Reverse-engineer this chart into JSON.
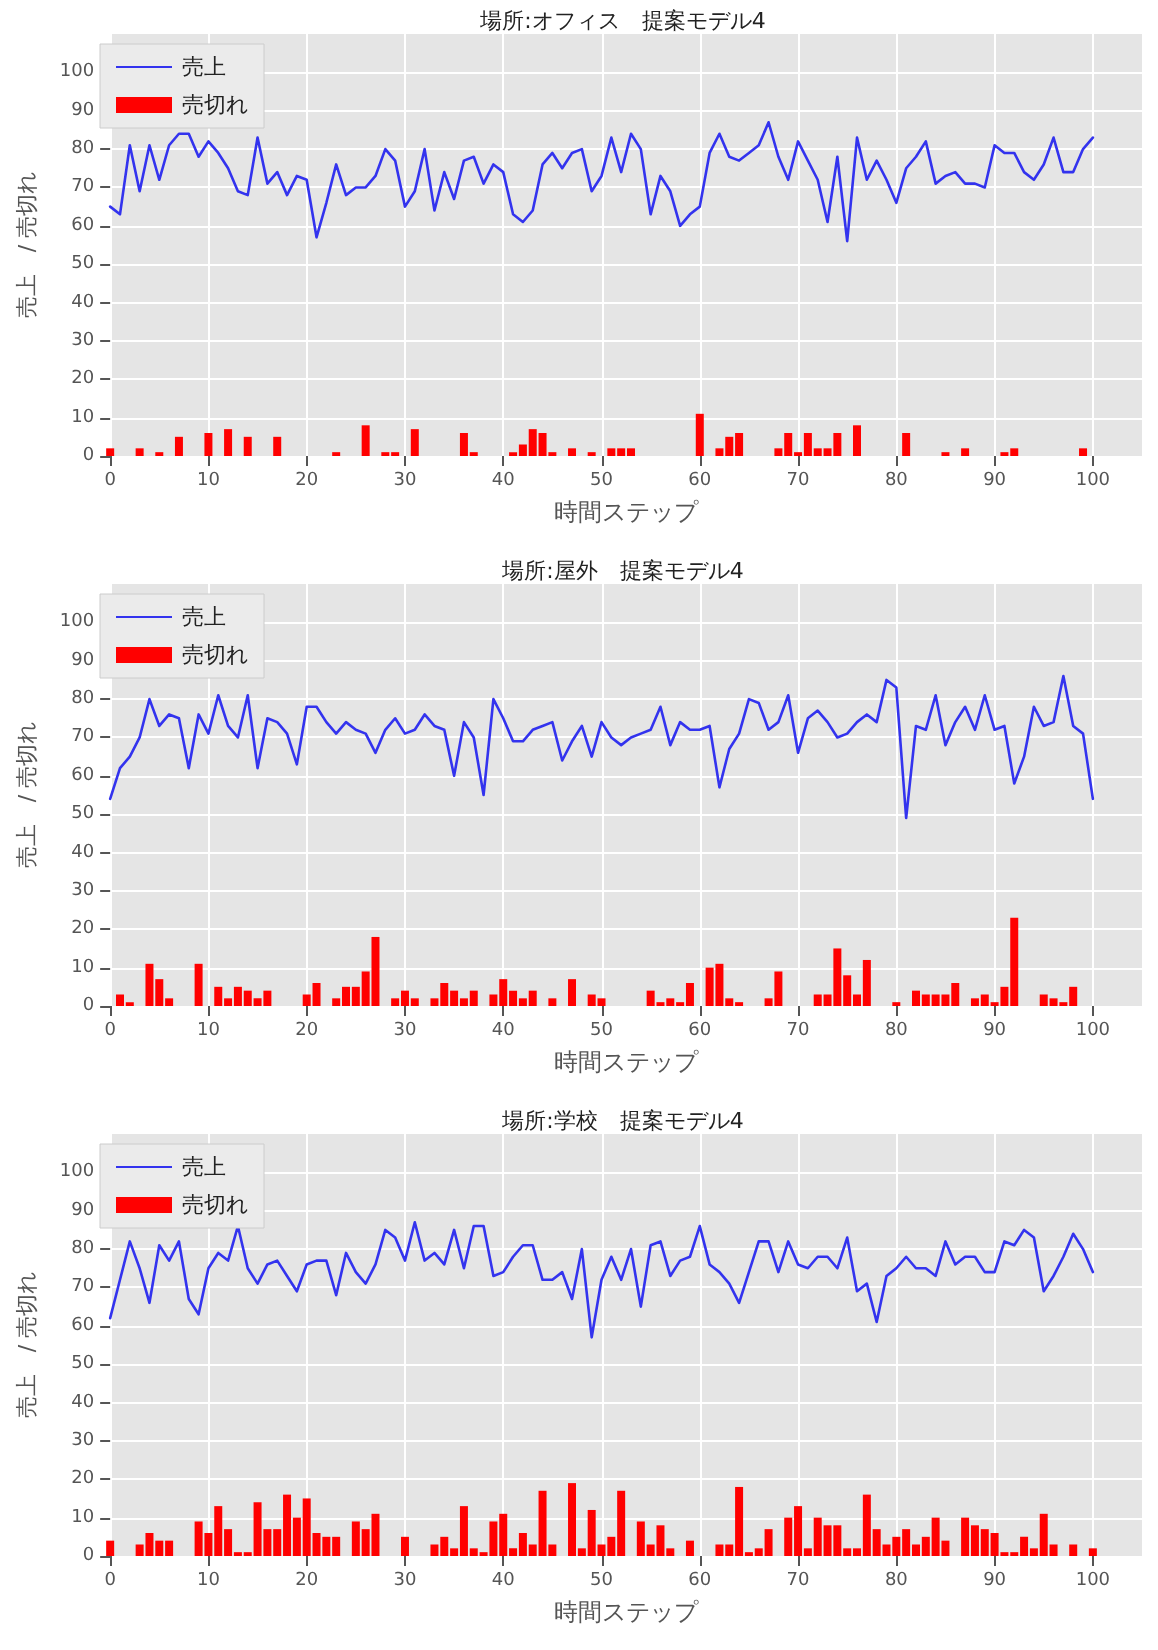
{
  "chart_data": [
    {
      "type": "line",
      "title": "場所:オフィス　提案モデル4",
      "xlabel": "時間ステップ",
      "ylabel": "売上　/ 売切れ",
      "xlim": [
        0,
        105
      ],
      "xticks": [
        0,
        10,
        20,
        30,
        40,
        50,
        60,
        70,
        80,
        90,
        100
      ],
      "ylim": [
        0,
        110
      ],
      "yticks": [
        0,
        10,
        20,
        30,
        40,
        50,
        60,
        70,
        80,
        90,
        100
      ],
      "grid": true,
      "legend": "top left",
      "marker": "none",
      "x": [
        0,
        1,
        2,
        3,
        4,
        5,
        6,
        7,
        8,
        9,
        10,
        11,
        12,
        13,
        14,
        15,
        16,
        17,
        18,
        19,
        20,
        21,
        22,
        23,
        24,
        25,
        26,
        27,
        28,
        29,
        30,
        31,
        32,
        33,
        34,
        35,
        36,
        37,
        38,
        39,
        40,
        41,
        42,
        43,
        44,
        45,
        46,
        47,
        48,
        49,
        50,
        51,
        52,
        53,
        54,
        55,
        56,
        57,
        58,
        59,
        60,
        61,
        62,
        63,
        64,
        65,
        66,
        67,
        68,
        69,
        70,
        71,
        72,
        73,
        74,
        75,
        76,
        77,
        78,
        79,
        80,
        81,
        82,
        83,
        84,
        85,
        86,
        87,
        88,
        89,
        90,
        91,
        92,
        93,
        94,
        95,
        96,
        97,
        98,
        99,
        100
      ],
      "series": [
        {
          "name": "売上",
          "color": "#3333ee",
          "values": [
            65,
            63,
            81,
            69,
            81,
            72,
            81,
            84,
            84,
            78,
            82,
            79,
            75,
            69,
            68,
            83,
            71,
            74,
            68,
            73,
            72,
            57,
            66,
            76,
            68,
            70,
            70,
            73,
            80,
            77,
            65,
            69,
            80,
            64,
            74,
            67,
            77,
            78,
            71,
            76,
            74,
            63,
            61,
            64,
            76,
            79,
            75,
            79,
            80,
            69,
            73,
            83,
            74,
            84,
            80,
            63,
            73,
            69,
            60,
            63,
            65,
            79,
            84,
            78,
            77,
            79,
            81,
            87,
            78,
            72,
            82,
            77,
            72,
            61,
            78,
            56,
            83,
            72,
            77,
            72,
            66,
            75,
            78,
            82,
            71,
            73,
            74,
            71,
            71,
            70,
            81,
            79,
            79,
            74,
            72,
            76,
            83,
            74,
            74,
            80,
            83
          ]
        },
        {
          "name": "売切れ",
          "type": "bar",
          "color": "#ff0000",
          "values": [
            2,
            0,
            0,
            2,
            0,
            1,
            0,
            5,
            0,
            0,
            6,
            0,
            7,
            0,
            5,
            0,
            0,
            5,
            0,
            0,
            0,
            0,
            0,
            1,
            0,
            0,
            8,
            0,
            1,
            1,
            0,
            7,
            0,
            0,
            0,
            0,
            6,
            1,
            0,
            0,
            0,
            1,
            3,
            7,
            6,
            1,
            0,
            2,
            0,
            1,
            0,
            2,
            2,
            2,
            0,
            0,
            0,
            0,
            0,
            0,
            11,
            0,
            2,
            5,
            6,
            0,
            0,
            0,
            2,
            6,
            1,
            6,
            2,
            2,
            6,
            0,
            8,
            0,
            0,
            0,
            0,
            6,
            0,
            0,
            0,
            1,
            0,
            2,
            0,
            0,
            0,
            1,
            2,
            0,
            0,
            0,
            0,
            0,
            0,
            2,
            0
          ]
        }
      ]
    },
    {
      "type": "line",
      "title": "場所:屋外　提案モデル4",
      "xlabel": "時間ステップ",
      "ylabel": "売上　/ 売切れ",
      "xlim": [
        0,
        105
      ],
      "xticks": [
        0,
        10,
        20,
        30,
        40,
        50,
        60,
        70,
        80,
        90,
        100
      ],
      "ylim": [
        0,
        110
      ],
      "yticks": [
        0,
        10,
        20,
        30,
        40,
        50,
        60,
        70,
        80,
        90,
        100
      ],
      "grid": true,
      "legend": "top left",
      "marker": "none",
      "x": [
        0,
        1,
        2,
        3,
        4,
        5,
        6,
        7,
        8,
        9,
        10,
        11,
        12,
        13,
        14,
        15,
        16,
        17,
        18,
        19,
        20,
        21,
        22,
        23,
        24,
        25,
        26,
        27,
        28,
        29,
        30,
        31,
        32,
        33,
        34,
        35,
        36,
        37,
        38,
        39,
        40,
        41,
        42,
        43,
        44,
        45,
        46,
        47,
        48,
        49,
        50,
        51,
        52,
        53,
        54,
        55,
        56,
        57,
        58,
        59,
        60,
        61,
        62,
        63,
        64,
        65,
        66,
        67,
        68,
        69,
        70,
        71,
        72,
        73,
        74,
        75,
        76,
        77,
        78,
        79,
        80,
        81,
        82,
        83,
        84,
        85,
        86,
        87,
        88,
        89,
        90,
        91,
        92,
        93,
        94,
        95,
        96,
        97,
        98,
        99,
        100
      ],
      "series": [
        {
          "name": "売上",
          "color": "#3333ee",
          "values": [
            54,
            62,
            65,
            70,
            80,
            73,
            76,
            75,
            62,
            76,
            71,
            81,
            73,
            70,
            81,
            62,
            75,
            74,
            71,
            63,
            78,
            78,
            74,
            71,
            74,
            72,
            71,
            66,
            72,
            75,
            71,
            72,
            76,
            73,
            72,
            60,
            74,
            70,
            55,
            80,
            75,
            69,
            69,
            72,
            73,
            74,
            64,
            69,
            73,
            65,
            74,
            70,
            68,
            70,
            71,
            72,
            78,
            68,
            74,
            72,
            72,
            73,
            57,
            67,
            71,
            80,
            79,
            72,
            74,
            81,
            66,
            75,
            77,
            74,
            70,
            71,
            74,
            76,
            74,
            85,
            83,
            49,
            73,
            72,
            81,
            68,
            74,
            78,
            72,
            81,
            72,
            73,
            58,
            65,
            78,
            73,
            74,
            86,
            73,
            71,
            54
          ]
        },
        {
          "name": "売切れ",
          "type": "bar",
          "color": "#ff0000",
          "values": [
            0,
            3,
            1,
            0,
            11,
            7,
            2,
            0,
            0,
            11,
            0,
            5,
            2,
            5,
            4,
            2,
            4,
            0,
            0,
            0,
            3,
            6,
            0,
            2,
            5,
            5,
            9,
            18,
            0,
            2,
            4,
            2,
            0,
            2,
            6,
            4,
            2,
            4,
            0,
            3,
            7,
            4,
            2,
            4,
            0,
            2,
            0,
            7,
            0,
            3,
            2,
            0,
            0,
            0,
            0,
            4,
            1,
            2,
            1,
            6,
            0,
            10,
            11,
            2,
            1,
            0,
            0,
            2,
            9,
            0,
            0,
            0,
            3,
            3,
            15,
            8,
            3,
            12,
            0,
            0,
            1,
            0,
            4,
            3,
            3,
            3,
            6,
            0,
            2,
            3,
            1,
            5,
            23,
            0,
            0,
            3,
            2,
            1,
            5,
            0,
            0
          ]
        }
      ]
    },
    {
      "type": "line",
      "title": "場所:学校　提案モデル4",
      "xlabel": "時間ステップ",
      "ylabel": "売上　/ 売切れ",
      "xlim": [
        0,
        105
      ],
      "xticks": [
        0,
        10,
        20,
        30,
        40,
        50,
        60,
        70,
        80,
        90,
        100
      ],
      "ylim": [
        0,
        110
      ],
      "yticks": [
        0,
        10,
        20,
        30,
        40,
        50,
        60,
        70,
        80,
        90,
        100
      ],
      "grid": true,
      "legend": "top left",
      "marker": "none",
      "x": [
        0,
        1,
        2,
        3,
        4,
        5,
        6,
        7,
        8,
        9,
        10,
        11,
        12,
        13,
        14,
        15,
        16,
        17,
        18,
        19,
        20,
        21,
        22,
        23,
        24,
        25,
        26,
        27,
        28,
        29,
        30,
        31,
        32,
        33,
        34,
        35,
        36,
        37,
        38,
        39,
        40,
        41,
        42,
        43,
        44,
        45,
        46,
        47,
        48,
        49,
        50,
        51,
        52,
        53,
        54,
        55,
        56,
        57,
        58,
        59,
        60,
        61,
        62,
        63,
        64,
        65,
        66,
        67,
        68,
        69,
        70,
        71,
        72,
        73,
        74,
        75,
        76,
        77,
        78,
        79,
        80,
        81,
        82,
        83,
        84,
        85,
        86,
        87,
        88,
        89,
        90,
        91,
        92,
        93,
        94,
        95,
        96,
        97,
        98,
        99,
        100
      ],
      "series": [
        {
          "name": "売上",
          "color": "#3333ee",
          "values": [
            62,
            72,
            82,
            75,
            66,
            81,
            77,
            82,
            67,
            63,
            75,
            79,
            77,
            86,
            75,
            71,
            76,
            77,
            73,
            69,
            76,
            77,
            77,
            68,
            79,
            74,
            71,
            76,
            85,
            83,
            77,
            87,
            77,
            79,
            76,
            85,
            75,
            86,
            86,
            73,
            74,
            78,
            81,
            81,
            72,
            72,
            74,
            67,
            80,
            57,
            72,
            78,
            72,
            80,
            65,
            81,
            82,
            73,
            77,
            78,
            86,
            76,
            74,
            71,
            66,
            74,
            82,
            82,
            74,
            82,
            76,
            75,
            78,
            78,
            75,
            83,
            69,
            71,
            61,
            73,
            75,
            78,
            75,
            75,
            73,
            82,
            76,
            78,
            78,
            74,
            74,
            82,
            81,
            85,
            83,
            69,
            73,
            78,
            84,
            80,
            74
          ]
        },
        {
          "name": "売切れ",
          "type": "bar",
          "color": "#ff0000",
          "values": [
            4,
            0,
            0,
            3,
            6,
            4,
            4,
            0,
            0,
            9,
            6,
            13,
            7,
            1,
            1,
            14,
            7,
            7,
            16,
            10,
            15,
            6,
            5,
            5,
            0,
            9,
            7,
            11,
            0,
            0,
            5,
            0,
            0,
            3,
            5,
            2,
            13,
            2,
            1,
            9,
            11,
            2,
            6,
            3,
            17,
            3,
            0,
            19,
            2,
            12,
            3,
            5,
            17,
            0,
            9,
            3,
            8,
            2,
            0,
            4,
            0,
            0,
            3,
            3,
            18,
            1,
            2,
            7,
            0,
            10,
            13,
            2,
            10,
            8,
            8,
            2,
            2,
            16,
            7,
            3,
            5,
            7,
            3,
            5,
            10,
            4,
            0,
            10,
            8,
            7,
            6,
            1,
            1,
            5,
            2,
            11,
            3,
            0,
            3,
            0,
            2
          ]
        }
      ]
    }
  ]
}
